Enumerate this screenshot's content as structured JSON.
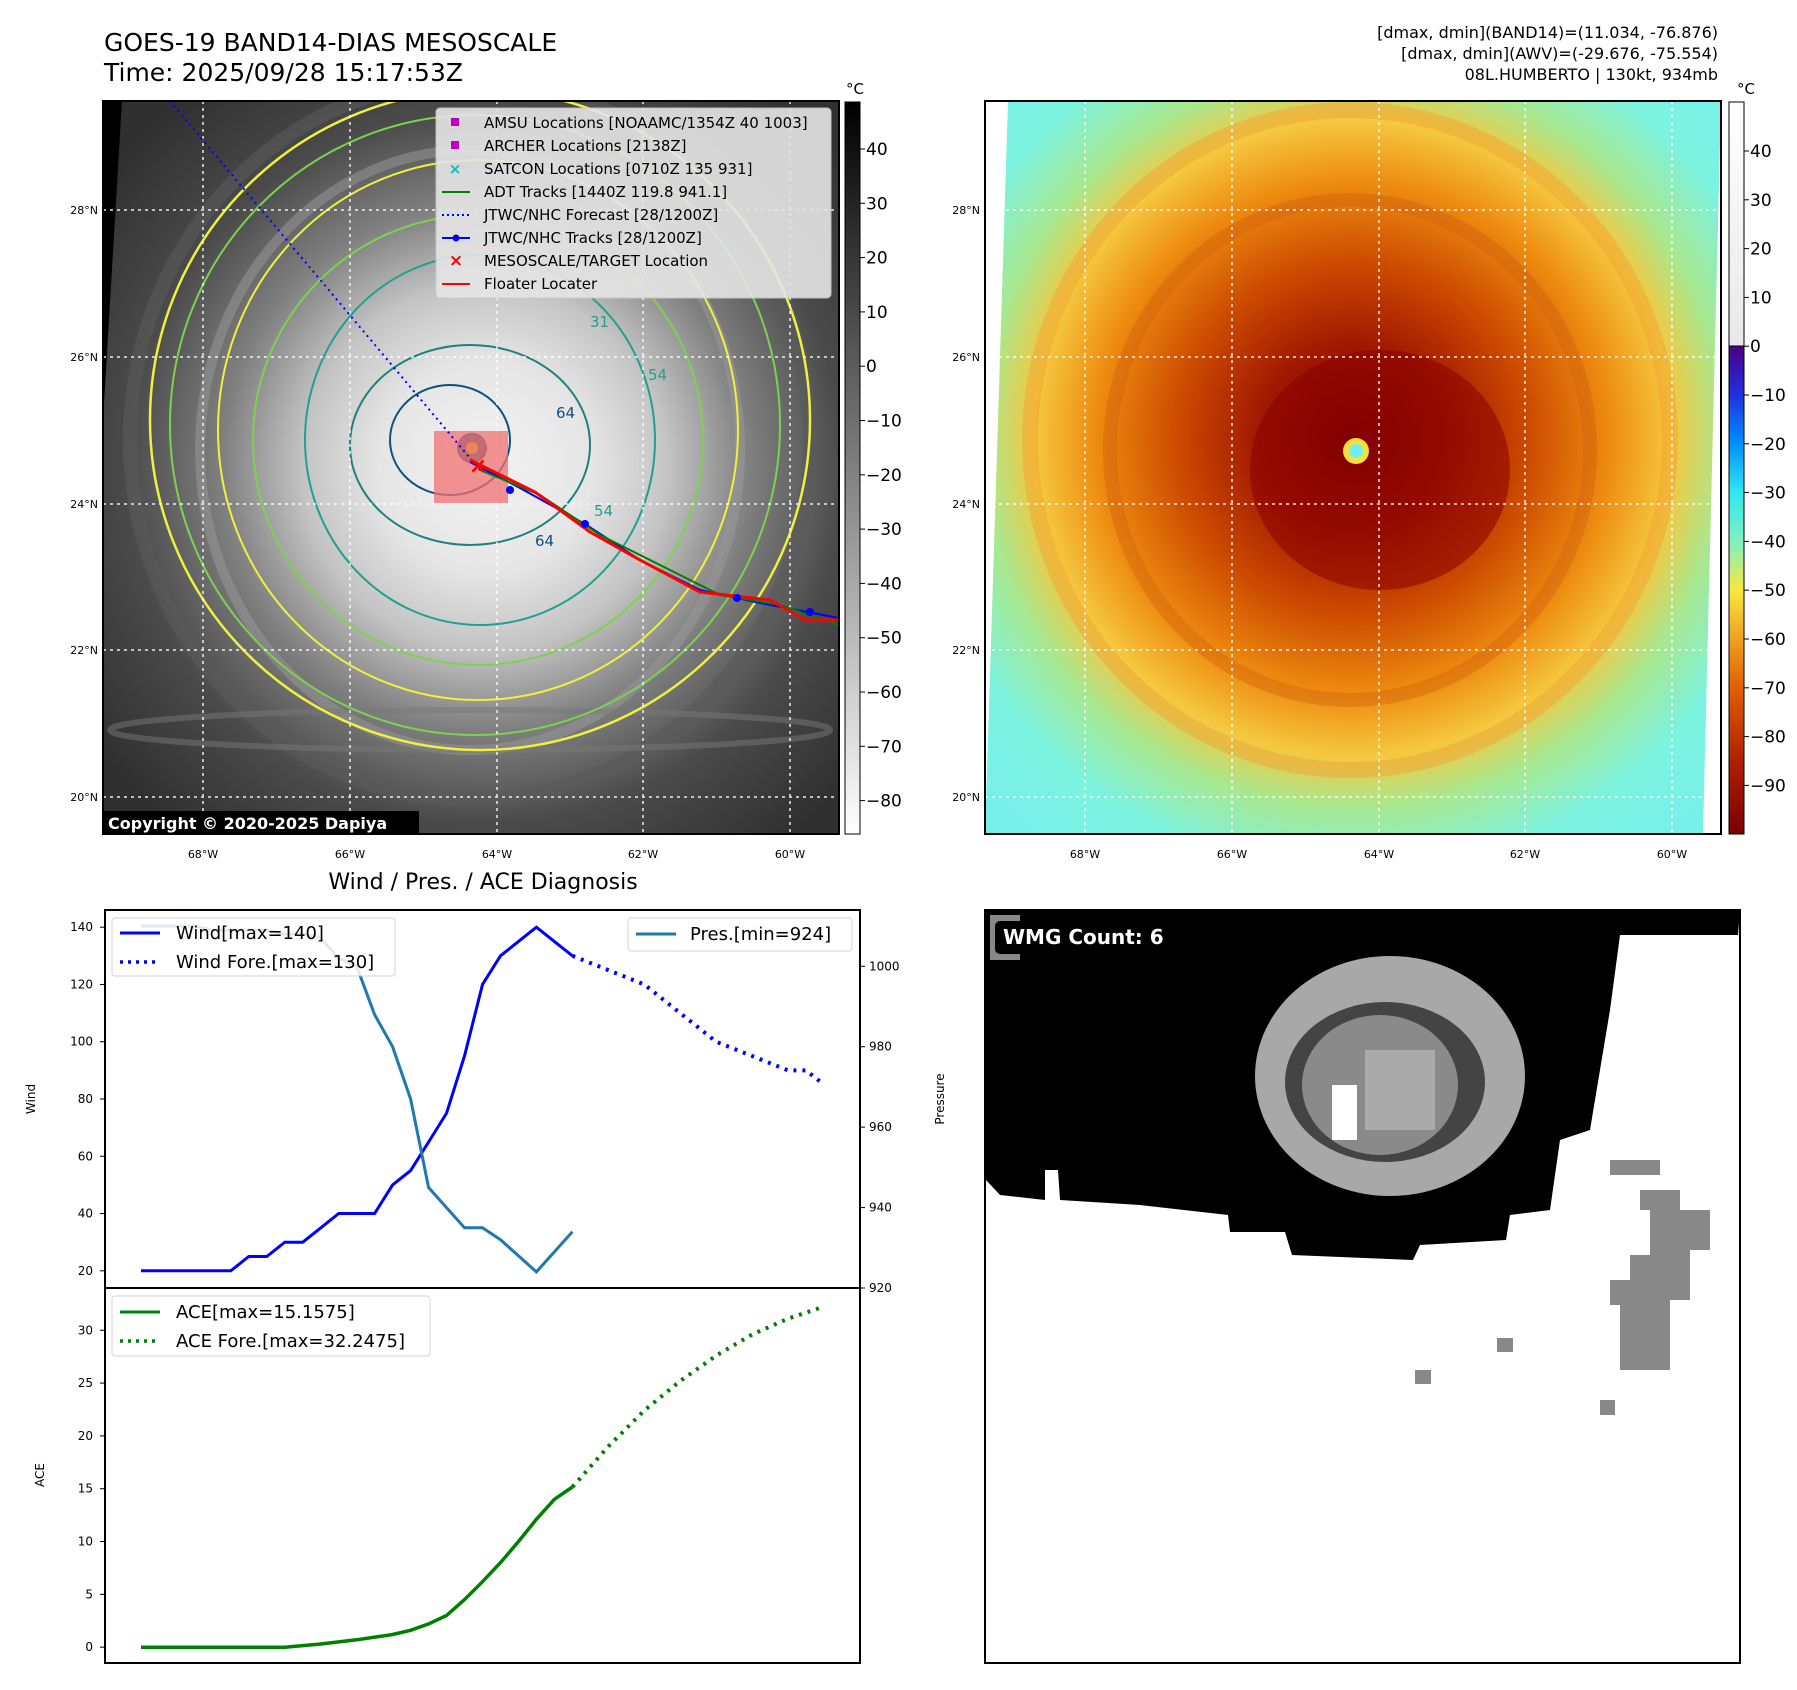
{
  "header": {
    "title": "GOES-19 BAND14-DIAS MESOSCALE",
    "time": "Time: 2025/09/28 15:17:53Z",
    "info_line1": "[dmax, dmin](BAND14)=(11.034, -76.876)",
    "info_line2": "[dmax, dmin](AWV)=(-29.676, -75.554)",
    "info_line3": "08L.HUMBERTO | 130kt, 934mb"
  },
  "map": {
    "lat_labels": [
      "28°N",
      "26°N",
      "24°N",
      "22°N",
      "20°N"
    ],
    "lon_labels": [
      "68°W",
      "66°W",
      "64°W",
      "62°W",
      "60°W"
    ],
    "copyright": "Copyright © 2020-2025 Dapiya",
    "contour_labels": [
      "31",
      "64",
      "64",
      "54",
      "54"
    ],
    "legend": [
      {
        "label": "AMSU Locations [NOAAMC/1354Z 40 1003]",
        "color": "#c000c0",
        "marker": "square"
      },
      {
        "label": "ARCHER Locations [2138Z]",
        "color": "#c000c0",
        "marker": "square"
      },
      {
        "label": "SATCON Locations [0710Z 135 931]",
        "color": "#00c0c0",
        "marker": "x"
      },
      {
        "label": "ADT Tracks [1440Z 119.8 941.1]",
        "color": "#008000",
        "marker": "line"
      },
      {
        "label": "JTWC/NHC Forecast [28/1200Z]",
        "color": "#0000ff",
        "marker": "dotted"
      },
      {
        "label": "JTWC/NHC Tracks [28/1200Z]",
        "color": "#0000ff",
        "marker": "line-dot"
      },
      {
        "label": "MESOSCALE/TARGET Location",
        "color": "#ff0000",
        "marker": "x"
      },
      {
        "label": "Floater Locater",
        "color": "#ff0000",
        "marker": "line"
      }
    ]
  },
  "colorbars": {
    "unit": "°C",
    "left_ticks": [
      "40",
      "30",
      "20",
      "10",
      "0",
      "−10",
      "−20",
      "−30",
      "−40",
      "−50",
      "−60",
      "−70",
      "−80"
    ],
    "right_ticks": [
      "40",
      "30",
      "20",
      "10",
      "0",
      "−10",
      "−20",
      "−30",
      "−40",
      "−50",
      "−60",
      "−70",
      "−80",
      "−90"
    ]
  },
  "wmg": {
    "label": "WMG Count: 6"
  },
  "chart_data": [
    {
      "type": "line",
      "title": "Wind / Pres. / ACE Diagnosis",
      "ylabel": "Wind",
      "y2label": "Pressure",
      "ylim": [
        14,
        146
      ],
      "y2lim": [
        920,
        1014
      ],
      "yticks": [
        "20",
        "40",
        "60",
        "80",
        "100",
        "120",
        "140"
      ],
      "y2ticks": [
        "920",
        "940",
        "960",
        "980",
        "1000"
      ],
      "legend_left": [
        "Wind[max=140]",
        "Wind Fore.[max=130]"
      ],
      "legend_right": [
        "Pres.[min=924]"
      ],
      "series": [
        {
          "name": "Wind[max=140]",
          "axis": "left",
          "color": "#0000ff",
          "style": "solid",
          "x": [
            0,
            2,
            4,
            5,
            6,
            7,
            8,
            9,
            10,
            11,
            12,
            13,
            14,
            15,
            16,
            17,
            18,
            19,
            20,
            22,
            24
          ],
          "values": [
            20,
            20,
            20,
            20,
            25,
            25,
            30,
            30,
            35,
            40,
            40,
            40,
            50,
            55,
            65,
            75,
            95,
            120,
            130,
            140,
            130
          ]
        },
        {
          "name": "Wind Fore.[max=130]",
          "axis": "left",
          "color": "#0000ff",
          "style": "dotted",
          "x": [
            24,
            26,
            28,
            30,
            32,
            34,
            36,
            37,
            38
          ],
          "values": [
            130,
            125,
            120,
            110,
            100,
            95,
            90,
            90,
            85
          ]
        },
        {
          "name": "Pres.[min=924]",
          "axis": "right",
          "color": "#1f77b4",
          "style": "solid",
          "x": [
            0,
            1,
            2,
            3,
            4,
            5,
            6,
            7,
            8,
            9,
            10,
            11,
            12,
            13,
            14,
            15,
            16,
            17,
            18,
            19,
            20,
            22,
            24
          ],
          "values": [
            1010,
            1010,
            1010,
            1010,
            1009,
            1009,
            1009,
            1009,
            1008,
            1008,
            1007,
            1002,
            1000,
            988,
            980,
            967,
            945,
            940,
            935,
            935,
            932,
            924,
            934
          ]
        }
      ]
    },
    {
      "type": "line",
      "ylabel": "ACE",
      "ylim": [
        -1.5,
        34
      ],
      "yticks": [
        "0",
        "5",
        "10",
        "15",
        "20",
        "25",
        "30"
      ],
      "legend": [
        "ACE[max=15.1575]",
        "ACE Fore.[max=32.2475]"
      ],
      "series": [
        {
          "name": "ACE[max=15.1575]",
          "color": "#008000",
          "style": "solid",
          "x": [
            0,
            4,
            8,
            10,
            12,
            14,
            15,
            16,
            17,
            18,
            19,
            20,
            21,
            22,
            23,
            24
          ],
          "values": [
            0,
            0,
            0,
            0.3,
            0.7,
            1.2,
            1.6,
            2.2,
            3.0,
            4.5,
            6.2,
            8.0,
            10.0,
            12.1,
            14.0,
            15.16
          ]
        },
        {
          "name": "ACE Fore.[max=32.2475]",
          "color": "#008000",
          "style": "dotted",
          "x": [
            24,
            26,
            28,
            30,
            32,
            34,
            36,
            38
          ],
          "values": [
            15.16,
            19.0,
            22.4,
            25.2,
            27.6,
            29.6,
            31.1,
            32.25
          ]
        }
      ]
    }
  ]
}
